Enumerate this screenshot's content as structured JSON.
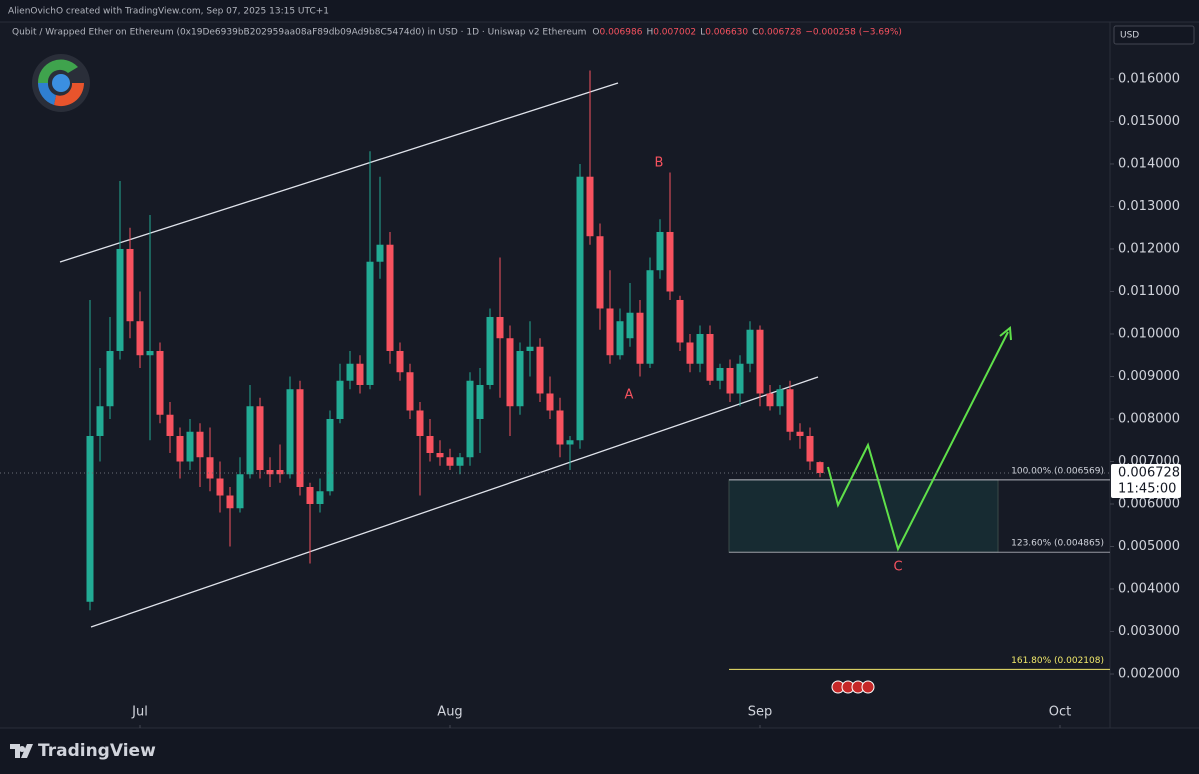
{
  "attribution": "AlienOvichO created with TradingView.com, Sep 07, 2025 13:15 UTC+1",
  "symbol_line": "Qubit / Wrapped Ether on Ethereum (0x19De6939bB202959aa08aF89db09Ad9b8C5474d0) in USD · 1D · Uniswap v2 Ethereum",
  "ohlc_header": [
    {
      "label": "O",
      "value": "0.006986"
    },
    {
      "label": "H",
      "value": "0.007002"
    },
    {
      "label": "L",
      "value": "0.006630"
    },
    {
      "label": "C",
      "value": "0.006728"
    }
  ],
  "change": "−0.000258 (−3.69%)",
  "currency": "USD",
  "brand": "TradingView",
  "chart_data": {
    "type": "candlestick",
    "up_color": "#22ab94",
    "down_color": "#f7525f",
    "xlim": [
      -9,
      102
    ],
    "xticks": [
      {
        "value": 5,
        "label": "Jul"
      },
      {
        "value": 36,
        "label": "Aug"
      },
      {
        "value": 67,
        "label": "Sep"
      },
      {
        "value": 97,
        "label": "Oct"
      }
    ],
    "ylim": [
      0.00073,
      0.01734
    ],
    "yticks": [
      {
        "value": 0.002,
        "label": "0.002000"
      },
      {
        "value": 0.003,
        "label": "0.003000"
      },
      {
        "value": 0.004,
        "label": "0.004000"
      },
      {
        "value": 0.005,
        "label": "0.005000"
      },
      {
        "value": 0.006,
        "label": "0.006000"
      },
      {
        "value": 0.007,
        "label": "0.007000"
      },
      {
        "value": 0.008,
        "label": "0.008000"
      },
      {
        "value": 0.009,
        "label": "0.009000"
      },
      {
        "value": 0.01,
        "label": "0.010000"
      },
      {
        "value": 0.011,
        "label": "0.011000"
      },
      {
        "value": 0.012,
        "label": "0.012000"
      },
      {
        "value": 0.013,
        "label": "0.013000"
      },
      {
        "value": 0.014,
        "label": "0.014000"
      },
      {
        "value": 0.015,
        "label": "0.015000"
      },
      {
        "value": 0.016,
        "label": "0.016000"
      }
    ],
    "grid": false,
    "ohlc": [
      [
        0.0037,
        0.0108,
        0.0035,
        0.0076
      ],
      [
        0.0076,
        0.0092,
        0.007,
        0.0083
      ],
      [
        0.0083,
        0.0104,
        0.008,
        0.0096
      ],
      [
        0.0096,
        0.0136,
        0.0094,
        0.012
      ],
      [
        0.012,
        0.0125,
        0.0099,
        0.0103
      ],
      [
        0.0103,
        0.011,
        0.0092,
        0.0095
      ],
      [
        0.0095,
        0.0128,
        0.0075,
        0.0096
      ],
      [
        0.0096,
        0.0098,
        0.0079,
        0.0081
      ],
      [
        0.0081,
        0.0084,
        0.0072,
        0.0076
      ],
      [
        0.0076,
        0.0078,
        0.0066,
        0.007
      ],
      [
        0.007,
        0.008,
        0.0068,
        0.0077
      ],
      [
        0.0077,
        0.0079,
        0.0064,
        0.0071
      ],
      [
        0.0071,
        0.0078,
        0.0063,
        0.0066
      ],
      [
        0.0066,
        0.007,
        0.0058,
        0.0062
      ],
      [
        0.0062,
        0.0064,
        0.005,
        0.0059
      ],
      [
        0.0059,
        0.0071,
        0.0058,
        0.0067
      ],
      [
        0.0067,
        0.0088,
        0.0066,
        0.0083
      ],
      [
        0.0083,
        0.0085,
        0.0066,
        0.0068
      ],
      [
        0.0068,
        0.0071,
        0.0064,
        0.0067
      ],
      [
        0.0068,
        0.0074,
        0.0065,
        0.0067
      ],
      [
        0.0067,
        0.009,
        0.0066,
        0.0087
      ],
      [
        0.0087,
        0.0089,
        0.0062,
        0.0064
      ],
      [
        0.0064,
        0.0065,
        0.0046,
        0.006
      ],
      [
        0.006,
        0.0066,
        0.0058,
        0.0063
      ],
      [
        0.0063,
        0.0082,
        0.0062,
        0.008
      ],
      [
        0.008,
        0.0093,
        0.0079,
        0.0089
      ],
      [
        0.0089,
        0.0096,
        0.0087,
        0.0093
      ],
      [
        0.0093,
        0.0095,
        0.0086,
        0.0088
      ],
      [
        0.0088,
        0.0143,
        0.0087,
        0.0117
      ],
      [
        0.0117,
        0.0137,
        0.0113,
        0.0121
      ],
      [
        0.0121,
        0.0124,
        0.0093,
        0.0096
      ],
      [
        0.0096,
        0.0098,
        0.0089,
        0.0091
      ],
      [
        0.0091,
        0.0093,
        0.008,
        0.0082
      ],
      [
        0.0082,
        0.0084,
        0.0062,
        0.0076
      ],
      [
        0.0076,
        0.008,
        0.007,
        0.0072
      ],
      [
        0.0072,
        0.0075,
        0.0069,
        0.0071
      ],
      [
        0.0071,
        0.0073,
        0.0068,
        0.0069
      ],
      [
        0.0069,
        0.0072,
        0.0067,
        0.0071
      ],
      [
        0.0071,
        0.0091,
        0.0069,
        0.0089
      ],
      [
        0.008,
        0.0092,
        0.0072,
        0.0088
      ],
      [
        0.0088,
        0.0106,
        0.0087,
        0.0104
      ],
      [
        0.0104,
        0.0118,
        0.0085,
        0.0099
      ],
      [
        0.0099,
        0.0102,
        0.0076,
        0.0083
      ],
      [
        0.0083,
        0.0098,
        0.0081,
        0.0096
      ],
      [
        0.0096,
        0.0103,
        0.009,
        0.0097
      ],
      [
        0.0097,
        0.0099,
        0.0084,
        0.0086
      ],
      [
        0.0086,
        0.009,
        0.008,
        0.0082
      ],
      [
        0.0082,
        0.0085,
        0.0071,
        0.0074
      ],
      [
        0.0074,
        0.0076,
        0.0068,
        0.0075
      ],
      [
        0.0075,
        0.014,
        0.0073,
        0.0137
      ],
      [
        0.0137,
        0.0162,
        0.0121,
        0.0123
      ],
      [
        0.0123,
        0.0126,
        0.0101,
        0.0106
      ],
      [
        0.0106,
        0.0115,
        0.0093,
        0.0095
      ],
      [
        0.0095,
        0.0106,
        0.0094,
        0.0103
      ],
      [
        0.0099,
        0.0112,
        0.0097,
        0.0105
      ],
      [
        0.0105,
        0.0108,
        0.009,
        0.0093
      ],
      [
        0.0093,
        0.0118,
        0.0092,
        0.0115
      ],
      [
        0.0115,
        0.0127,
        0.0113,
        0.0124
      ],
      [
        0.0124,
        0.0138,
        0.0108,
        0.011
      ],
      [
        0.0108,
        0.0109,
        0.0096,
        0.0098
      ],
      [
        0.0098,
        0.01,
        0.0091,
        0.0093
      ],
      [
        0.0093,
        0.0102,
        0.0091,
        0.01
      ],
      [
        0.01,
        0.0102,
        0.0088,
        0.0089
      ],
      [
        0.0089,
        0.0093,
        0.0087,
        0.0092
      ],
      [
        0.0092,
        0.0094,
        0.0084,
        0.0086
      ],
      [
        0.0086,
        0.0095,
        0.0083,
        0.0093
      ],
      [
        0.0093,
        0.0103,
        0.0091,
        0.0101
      ],
      [
        0.0101,
        0.0102,
        0.0083,
        0.0086
      ],
      [
        0.0086,
        0.0088,
        0.0082,
        0.0083
      ],
      [
        0.0083,
        0.0088,
        0.0081,
        0.0087
      ],
      [
        0.0087,
        0.0089,
        0.0075,
        0.0077
      ],
      [
        0.0077,
        0.0079,
        0.0073,
        0.0076
      ],
      [
        0.0076,
        0.0078,
        0.0068,
        0.007
      ],
      [
        0.006986,
        0.007002,
        0.00663,
        0.006728
      ]
    ],
    "last_price": {
      "value": 0.006728,
      "label": "0.006728"
    },
    "countdown": "11:45:00",
    "fib_levels": [
      {
        "value": 0.006569,
        "label": "100.00% (0.006569)",
        "color": "#b2b5be"
      },
      {
        "value": 0.004865,
        "label": "123.60% (0.004865)",
        "color": "#9598a1"
      },
      {
        "value": 0.002108,
        "label": "161.80% (0.002108)",
        "color": "#f2e96b"
      }
    ],
    "annotations": [
      "A",
      "B",
      "C"
    ]
  }
}
